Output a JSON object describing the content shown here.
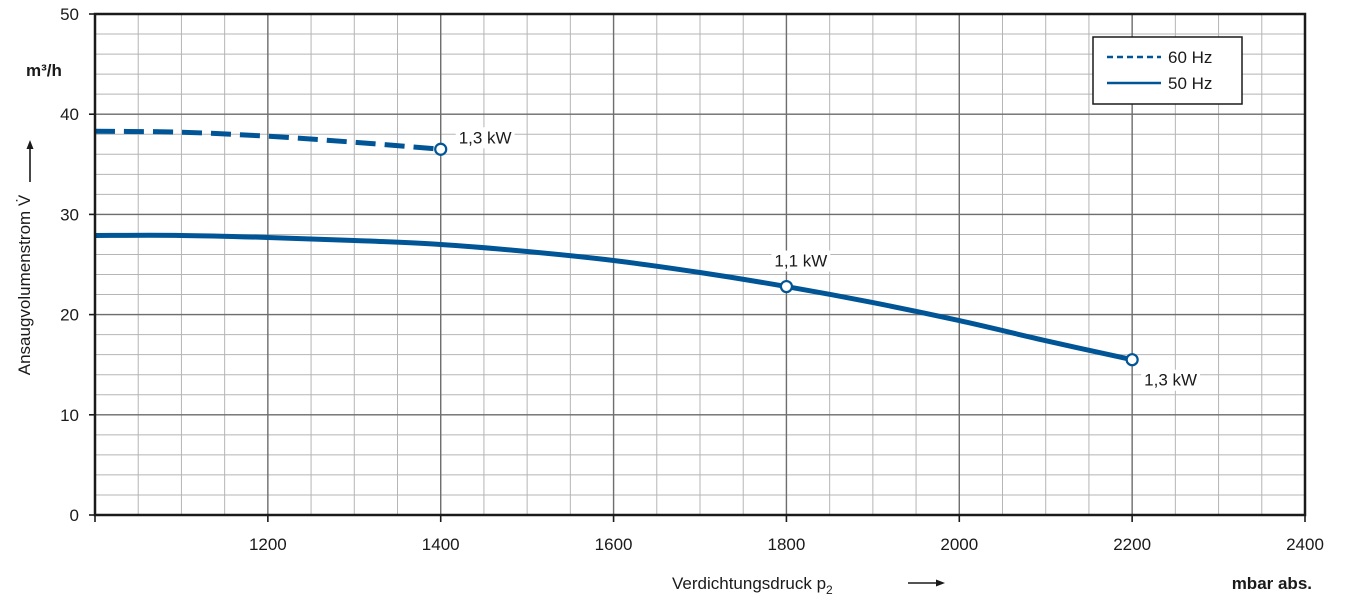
{
  "chart_data": {
    "type": "line",
    "x_axis": {
      "label": "Verdichtungsdruck p",
      "label_sub": "2",
      "unit": "mbar abs.",
      "min": 1000,
      "max": 2400,
      "ticks": [
        1200,
        1400,
        1600,
        1800,
        2000,
        2200,
        2400
      ],
      "minor_step": 50
    },
    "y_axis": {
      "label": "Ansaugvolumenstrom V̇",
      "unit": "m³/h",
      "min": 0,
      "max": 50,
      "ticks": [
        0,
        10,
        20,
        30,
        40,
        50
      ],
      "minor_step": 2
    },
    "grid": true,
    "legend": {
      "position": "top-right",
      "entries": [
        {
          "name": "60 Hz",
          "style": "dashed"
        },
        {
          "name": "50 Hz",
          "style": "solid"
        }
      ]
    },
    "series": [
      {
        "name": "60 Hz",
        "style": "dashed",
        "color": "#005596",
        "x": [
          1000,
          1100,
          1200,
          1300,
          1400
        ],
        "y": [
          38.3,
          38.2,
          37.8,
          37.2,
          36.5
        ]
      },
      {
        "name": "50 Hz",
        "style": "solid",
        "color": "#005596",
        "x": [
          1000,
          1100,
          1200,
          1300,
          1400,
          1500,
          1600,
          1700,
          1800,
          1900,
          2000,
          2100,
          2200
        ],
        "y": [
          27.9,
          27.9,
          27.7,
          27.4,
          27.0,
          26.3,
          25.4,
          24.2,
          22.8,
          21.2,
          19.4,
          17.4,
          15.5
        ]
      }
    ],
    "annotations": [
      {
        "text": "1,3 kW",
        "x": 1400,
        "y": 36.5,
        "series": "60 Hz",
        "side": "right"
      },
      {
        "text": "1,1 kW",
        "x": 1800,
        "y": 22.8,
        "series": "50 Hz",
        "side": "above"
      },
      {
        "text": "1,3 kW",
        "x": 2200,
        "y": 15.5,
        "series": "50 Hz",
        "side": "below-right"
      }
    ]
  }
}
